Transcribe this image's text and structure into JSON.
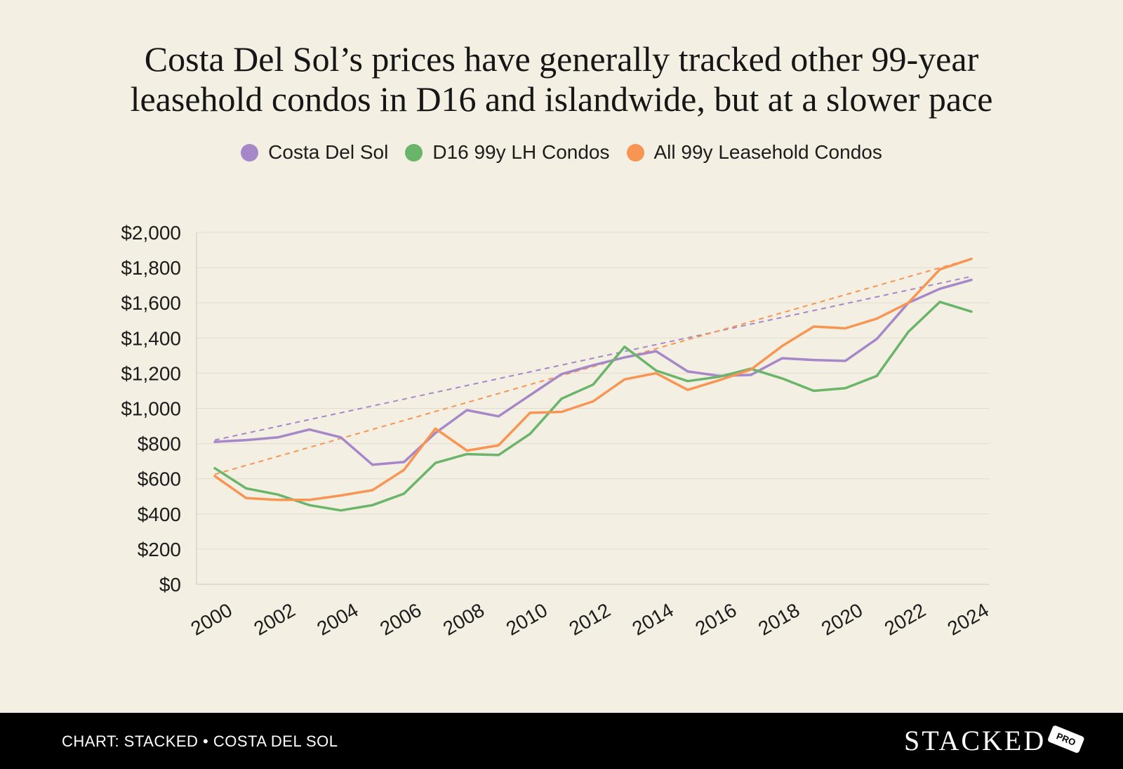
{
  "header": {
    "title_line1": "Costa Del Sol’s prices have generally tracked other 99-year",
    "title_line2": "leasehold condos in D16 and islandwide, but at a slower pace"
  },
  "legend": [
    {
      "label": "Costa Del Sol",
      "color": "#a688c8"
    },
    {
      "label": "D16 99y LH Condos",
      "color": "#6bb56b"
    },
    {
      "label": "All 99y Leasehold Condos",
      "color": "#f89552"
    }
  ],
  "chart_data": {
    "type": "line",
    "x": [
      2000,
      2001,
      2002,
      2003,
      2004,
      2005,
      2006,
      2007,
      2008,
      2009,
      2010,
      2011,
      2012,
      2013,
      2014,
      2015,
      2016,
      2017,
      2018,
      2019,
      2020,
      2021,
      2022,
      2023,
      2024
    ],
    "x_tick_labels": [
      "2000",
      "2002",
      "2004",
      "2006",
      "2008",
      "2010",
      "2012",
      "2014",
      "2016",
      "2018",
      "2020",
      "2022",
      "2024"
    ],
    "y_tick_labels": [
      "$0",
      "$200",
      "$400",
      "$600",
      "$800",
      "$1,000",
      "$1,200",
      "$1,400",
      "$1,600",
      "$1,800",
      "$2,000"
    ],
    "ylim": [
      0,
      2000
    ],
    "ytick_step": 200,
    "grid": true,
    "series": [
      {
        "name": "Costa Del Sol",
        "color": "#a688c8",
        "values": [
          810,
          820,
          835,
          880,
          835,
          680,
          695,
          860,
          990,
          955,
          1075,
          1195,
          1245,
          1290,
          1325,
          1210,
          1185,
          1190,
          1285,
          1275,
          1270,
          1395,
          1600,
          1680,
          1730
        ]
      },
      {
        "name": "D16 99y LH Condos",
        "color": "#6bb56b",
        "values": [
          660,
          545,
          510,
          450,
          420,
          450,
          515,
          690,
          740,
          735,
          855,
          1055,
          1135,
          1350,
          1215,
          1155,
          1180,
          1225,
          1170,
          1100,
          1115,
          1185,
          1435,
          1605,
          1550
        ]
      },
      {
        "name": "All 99y Leasehold Condos",
        "color": "#f89552",
        "values": [
          615,
          490,
          480,
          480,
          505,
          535,
          650,
          885,
          760,
          790,
          975,
          980,
          1040,
          1165,
          1200,
          1105,
          1160,
          1220,
          1355,
          1465,
          1455,
          1510,
          1600,
          1790,
          1850
        ]
      }
    ],
    "trendlines": [
      {
        "name": "Costa Del Sol trend",
        "color": "#a688c8",
        "dashed": true,
        "start": [
          2000,
          820
        ],
        "end": [
          2024,
          1750
        ]
      },
      {
        "name": "All 99y Leasehold Condos trend",
        "color": "#f89552",
        "dashed": true,
        "start": [
          2000,
          625
        ],
        "end": [
          2024,
          1850
        ]
      }
    ]
  },
  "footer": {
    "credit": "CHART: STACKED • COSTA DEL SOL",
    "logo_text": "STACKED",
    "logo_badge": "PRO"
  }
}
